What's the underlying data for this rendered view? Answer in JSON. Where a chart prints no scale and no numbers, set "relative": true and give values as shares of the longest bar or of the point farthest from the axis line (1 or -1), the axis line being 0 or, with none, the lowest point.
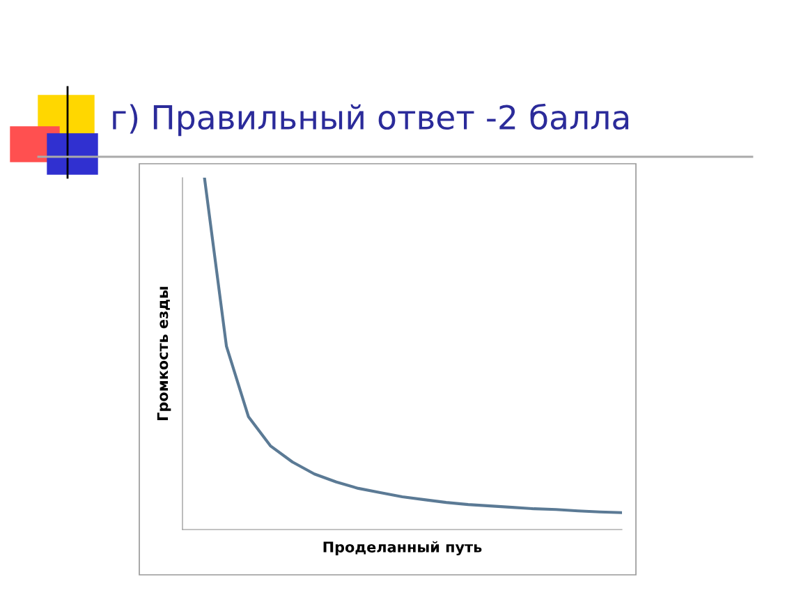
{
  "chart_data": {
    "type": "line",
    "title": "г) Правильный ответ -2 балла",
    "xlabel": "Проделанный путь",
    "ylabel": "Громкость езды",
    "relative": true,
    "categories": [
      null,
      null,
      null,
      null,
      null,
      null,
      null,
      null,
      null,
      null,
      null,
      null,
      null,
      null,
      null,
      null,
      null,
      null,
      null,
      null,
      null
    ],
    "series": [
      {
        "color": "#5b7a95",
        "values": [
          null,
          1.0,
          0.521,
          0.321,
          0.238,
          0.192,
          0.158,
          0.135,
          0.117,
          0.105,
          0.093,
          0.085,
          0.077,
          0.071,
          0.067,
          0.063,
          0.059,
          0.057,
          0.053,
          0.05,
          0.048
        ]
      }
    ]
  }
}
